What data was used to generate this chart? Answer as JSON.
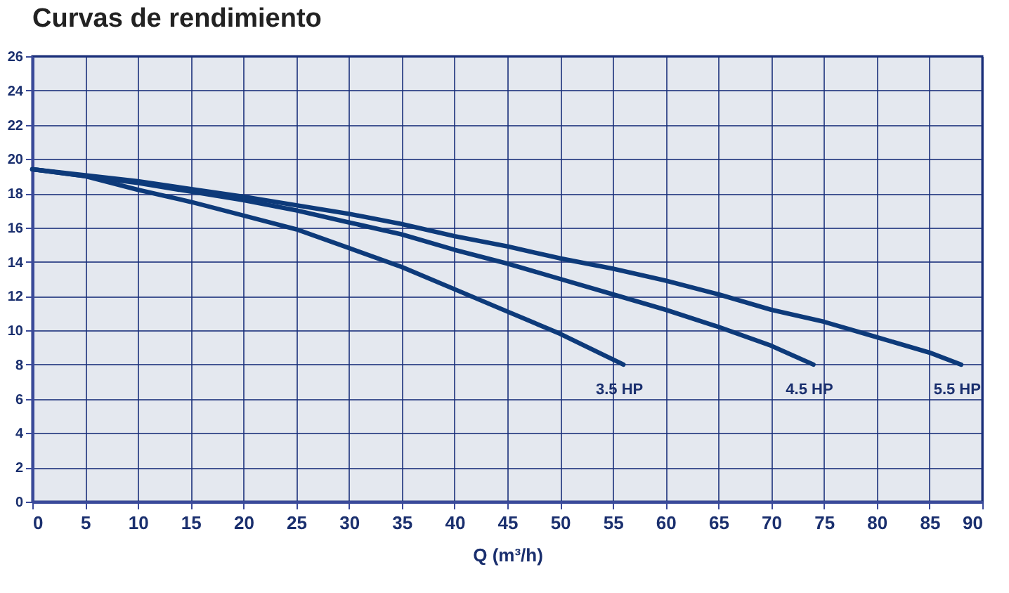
{
  "chart_data": {
    "type": "line",
    "title": "Curvas de rendimiento",
    "xlabel": "Q (m³/h)",
    "xlim": [
      0,
      90
    ],
    "xticks": [
      0,
      5,
      10,
      15,
      20,
      25,
      30,
      35,
      40,
      45,
      50,
      55,
      60,
      65,
      70,
      75,
      80,
      85,
      90
    ],
    "ylim": [
      0,
      26
    ],
    "yticks": [
      0,
      2,
      4,
      6,
      8,
      10,
      12,
      14,
      16,
      18,
      20,
      22,
      24,
      26
    ],
    "grid": true,
    "legend": false,
    "marker": "none",
    "line_style": "solid",
    "series": [
      {
        "name": "3.5 HP",
        "color": "#0d3a7a",
        "x": [
          0,
          5,
          10,
          15,
          20,
          25,
          30,
          35,
          40,
          45,
          50,
          56
        ],
        "values": [
          19.4,
          19.0,
          18.2,
          17.5,
          16.7,
          15.9,
          14.8,
          13.7,
          12.4,
          11.1,
          9.8,
          8.0
        ]
      },
      {
        "name": "4.5 HP",
        "color": "#0d3a7a",
        "x": [
          0,
          10,
          20,
          25,
          30,
          35,
          40,
          45,
          50,
          55,
          60,
          65,
          70,
          74
        ],
        "values": [
          19.4,
          18.6,
          17.6,
          17.0,
          16.3,
          15.6,
          14.7,
          13.9,
          13.0,
          12.1,
          11.2,
          10.2,
          9.1,
          8.0
        ]
      },
      {
        "name": "5.5 HP",
        "color": "#0d3a7a",
        "x": [
          0,
          10,
          20,
          25,
          30,
          35,
          40,
          45,
          50,
          55,
          60,
          65,
          70,
          75,
          80,
          85,
          88
        ],
        "values": [
          19.4,
          18.7,
          17.8,
          17.3,
          16.8,
          16.2,
          15.5,
          14.9,
          14.2,
          13.6,
          12.9,
          12.1,
          11.2,
          10.5,
          9.6,
          8.7,
          8.0
        ]
      }
    ]
  }
}
